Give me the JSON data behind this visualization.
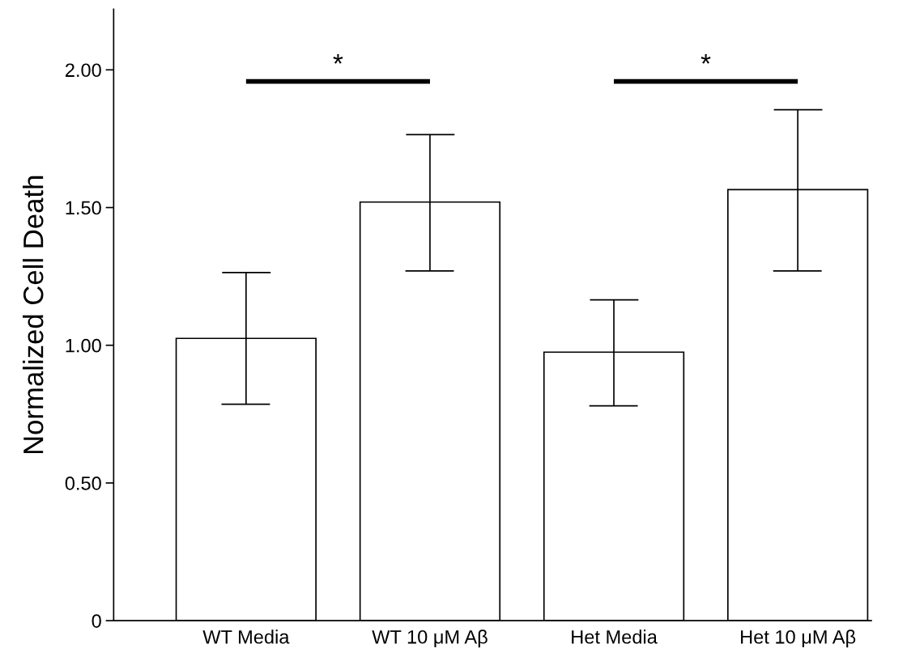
{
  "chart_data": {
    "type": "bar",
    "ylabel": "Normalized Cell Death",
    "categories": [
      "WT Media",
      "WT 10 μM Aβ",
      "Het Media",
      "Het 10 μM Aβ"
    ],
    "values": [
      1.025,
      1.52,
      0.975,
      1.565
    ],
    "errors": [
      [
        0.786,
        1.264
      ],
      [
        1.27,
        1.765
      ],
      [
        0.78,
        1.165
      ],
      [
        1.27,
        1.855
      ]
    ],
    "color": "#ffffff",
    "ylim": [
      0,
      2.22
    ],
    "yticks": [
      0,
      {
        "value": 0.5,
        "label": "0.50"
      },
      {
        "value": 1.0,
        "label": "1.00"
      },
      {
        "value": 1.5,
        "label": "1.50"
      },
      {
        "value": 2.0,
        "label": "2.00"
      }
    ],
    "annotations": [
      "*",
      "*"
    ],
    "grid": false,
    "legend": false
  }
}
